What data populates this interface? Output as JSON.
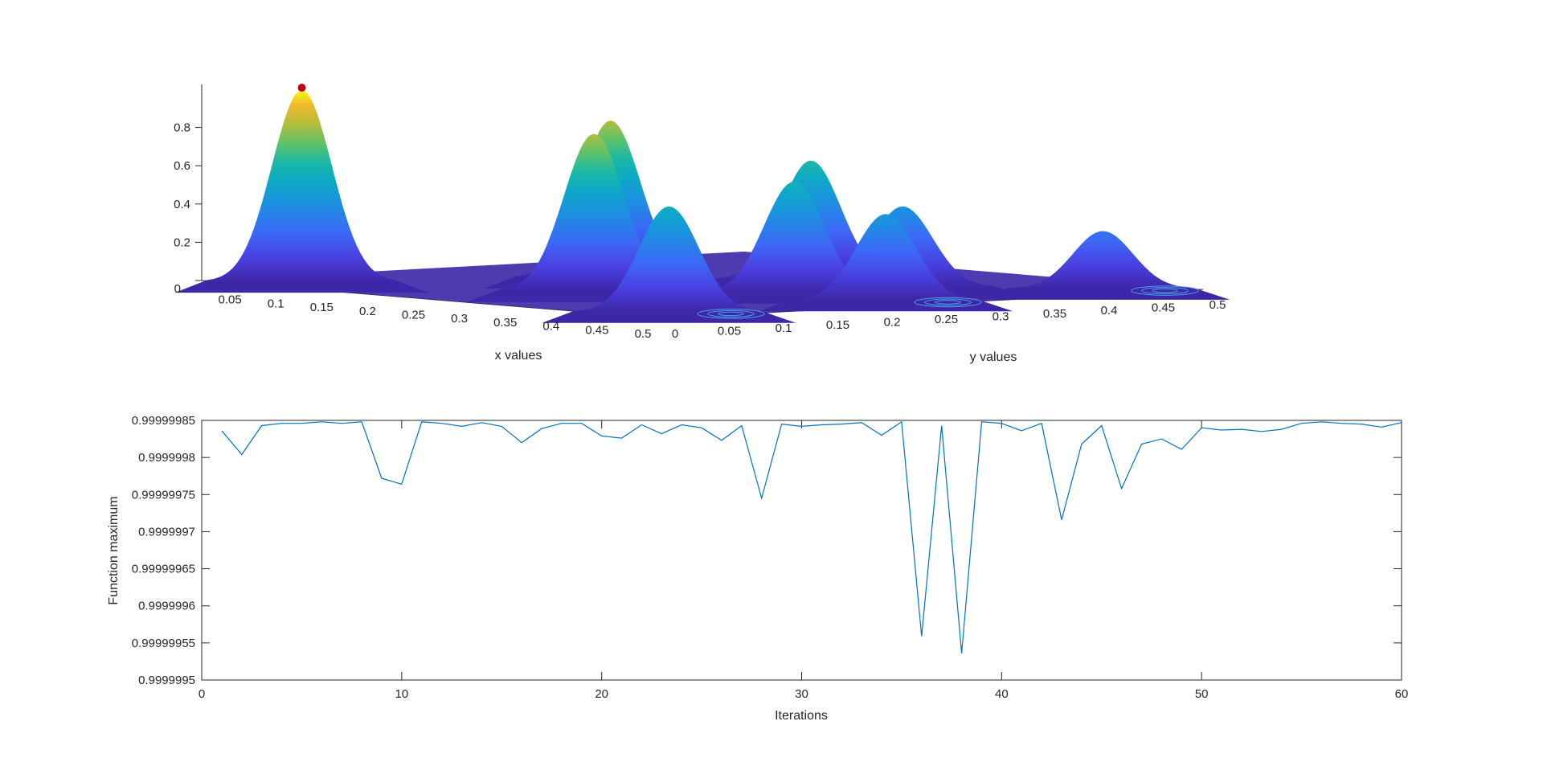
{
  "chart_data": [
    {
      "type": "surface",
      "xlabel": "x values",
      "ylabel": "y values",
      "zlabel": "",
      "xlim": [
        0,
        0.5
      ],
      "ylim": [
        0,
        0.5
      ],
      "zlim": [
        0,
        1
      ],
      "x_ticks": [
        "0.05",
        "0.1",
        "0.15",
        "0.2",
        "0.25",
        "0.3",
        "0.35",
        "0.4",
        "0.45",
        "0.5"
      ],
      "y_ticks": [
        "0",
        "0.05",
        "0.1",
        "0.15",
        "0.2",
        "0.25",
        "0.3",
        "0.35",
        "0.4",
        "0.45",
        "0.5"
      ],
      "z_ticks": [
        "0",
        "0.2",
        "0.4",
        "0.6",
        "0.8"
      ],
      "colormap": "parula",
      "marker": {
        "x": 0.05,
        "y": 0.05,
        "z": 1.0,
        "color": "#c0001a"
      },
      "peaks": [
        {
          "x": 0.05,
          "y": 0.05,
          "z": 1.0
        },
        {
          "x": 0.25,
          "y": 0.15,
          "z": 0.82
        },
        {
          "x": 0.15,
          "y": 0.25,
          "z": 0.82
        },
        {
          "x": 0.45,
          "y": 0.05,
          "z": 0.55
        },
        {
          "x": 0.35,
          "y": 0.25,
          "z": 0.58
        },
        {
          "x": 0.25,
          "y": 0.35,
          "z": 0.62
        },
        {
          "x": 0.45,
          "y": 0.25,
          "z": 0.45
        },
        {
          "x": 0.35,
          "y": 0.35,
          "z": 0.42
        },
        {
          "x": 0.45,
          "y": 0.45,
          "z": 0.3
        }
      ]
    },
    {
      "type": "line",
      "xlabel": "Iterations",
      "ylabel": "Function maximum",
      "xlim": [
        0,
        60
      ],
      "ylim": [
        0.9999995,
        0.99999985
      ],
      "x_ticks": [
        "0",
        "10",
        "20",
        "30",
        "40",
        "50",
        "60"
      ],
      "y_ticks": [
        "0.9999995",
        "0.99999955",
        "0.9999996",
        "0.99999965",
        "0.9999997",
        "0.99999975",
        "0.9999998",
        "0.99999985"
      ],
      "line_color": "#0072bd",
      "series": [
        {
          "x": [
            1,
            2,
            3,
            4,
            5,
            6,
            7,
            8,
            9,
            10,
            11,
            12,
            13,
            14,
            15,
            16,
            17,
            18,
            19,
            20,
            21,
            22,
            23,
            24,
            25,
            26,
            27,
            28,
            29,
            30,
            31,
            32,
            33,
            34,
            35,
            36,
            37,
            38,
            39,
            40,
            41,
            42,
            43,
            44,
            45,
            46,
            47,
            48,
            49,
            50,
            51,
            52,
            53,
            54,
            55,
            56,
            57,
            58,
            59,
            60
          ],
          "values": [
            0.999999836,
            0.999999804,
            0.999999843,
            0.999999846,
            0.999999846,
            0.999999848,
            0.999999846,
            0.999999848,
            0.999999772,
            0.999999764,
            0.999999848,
            0.999999846,
            0.999999842,
            0.999999847,
            0.999999842,
            0.99999982,
            0.999999839,
            0.999999846,
            0.999999846,
            0.999999829,
            0.999999826,
            0.999999844,
            0.999999832,
            0.999999844,
            0.99999984,
            0.999999823,
            0.999999843,
            0.999999745,
            0.999999845,
            0.999999842,
            0.999999844,
            0.999999845,
            0.999999847,
            0.99999983,
            0.999999848,
            0.999999559,
            0.999999843,
            0.999999536,
            0.999999848,
            0.999999846,
            0.999999836,
            0.999999846,
            0.999999716,
            0.999999818,
            0.999999843,
            0.999999758,
            0.999999818,
            0.999999825,
            0.999999811,
            0.99999984,
            0.999999837,
            0.999999838,
            0.999999835,
            0.999999838,
            0.999999846,
            0.999999848,
            0.999999846,
            0.999999845,
            0.999999841,
            0.999999847
          ]
        }
      ]
    }
  ]
}
